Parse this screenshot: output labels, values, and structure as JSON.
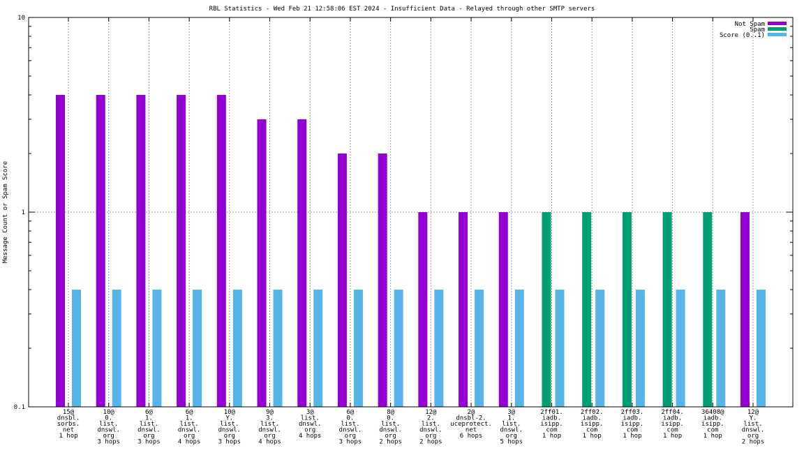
{
  "chart_data": {
    "type": "bar",
    "title": "RBL Statistics - Wed Feb 21 12:58:06 EST 2024 - Insufficient Data - Relayed through other SMTP servers",
    "xlabel": "",
    "ylabel": "Message Count or Spam Score",
    "yscale": "log",
    "ylim": [
      0.1,
      10
    ],
    "yticks": [
      "0.1",
      "1",
      "10"
    ],
    "grid": true,
    "legend_position": "top-right",
    "colors": {
      "not_spam": "#9400d3",
      "spam": "#009e73",
      "score": "#56b4e9"
    },
    "categories": [
      [
        "15@",
        "dnsbl.",
        "sorbs.",
        "net",
        "1 hop"
      ],
      [
        "10@",
        "0.",
        "list.",
        "dnswl.",
        "org",
        "3 hops"
      ],
      [
        "6@",
        "1.",
        "list.",
        "dnswl.",
        "org",
        "3 hops"
      ],
      [
        "6@",
        "1.",
        "list.",
        "dnswl.",
        "org",
        "4 hops"
      ],
      [
        "10@",
        "Y.",
        "list.",
        "dnswl.",
        "org",
        "3 hops"
      ],
      [
        "9@",
        "3.",
        "list.",
        "dnswl.",
        "org",
        "4 hops"
      ],
      [
        "3@",
        "list.",
        "dnswl.",
        "org",
        "4 hops"
      ],
      [
        "6@",
        "0.",
        "list.",
        "dnswl.",
        "org",
        "3 hops"
      ],
      [
        "8@",
        "0.",
        "list.",
        "dnswl.",
        "org",
        "2 hops"
      ],
      [
        "12@",
        "2.",
        "list.",
        "dnswl.",
        "org",
        "2 hops"
      ],
      [
        "2@",
        "dnsbl-2.",
        "uceprotect.",
        "net",
        "6 hops"
      ],
      [
        "3@",
        "1.",
        "list.",
        "dnswl.",
        "org",
        "5 hops"
      ],
      [
        "2ff01.",
        "iadb.",
        "isipp.",
        "com",
        "1 hop"
      ],
      [
        "2ff02.",
        "iadb.",
        "isipp.",
        "com",
        "1 hop"
      ],
      [
        "2ff03.",
        "iadb.",
        "isipp.",
        "com",
        "1 hop"
      ],
      [
        "2ff04.",
        "iadb.",
        "isipp.",
        "com",
        "1 hop"
      ],
      [
        "36408@",
        "iadb.",
        "isipp.",
        "com",
        "1 hop"
      ],
      [
        "12@",
        "Y.",
        "list.",
        "dnswl.",
        "org",
        "2 hops"
      ]
    ],
    "series": [
      {
        "name": "Not Spam",
        "values": [
          4,
          4,
          4,
          4,
          4,
          3,
          3,
          2,
          2,
          1,
          1,
          1,
          0,
          0,
          0,
          0,
          0,
          1
        ]
      },
      {
        "name": "Spam",
        "values": [
          0,
          0,
          0,
          0,
          0,
          0,
          0,
          0,
          0,
          0,
          0,
          0,
          1,
          1,
          1,
          1,
          1,
          0
        ]
      },
      {
        "name": "Score (0..1)",
        "values": [
          0.4,
          0.4,
          0.4,
          0.4,
          0.4,
          0.4,
          0.4,
          0.4,
          0.4,
          0.4,
          0.4,
          0.4,
          0.4,
          0.4,
          0.4,
          0.4,
          0.4,
          0.4
        ]
      }
    ]
  }
}
